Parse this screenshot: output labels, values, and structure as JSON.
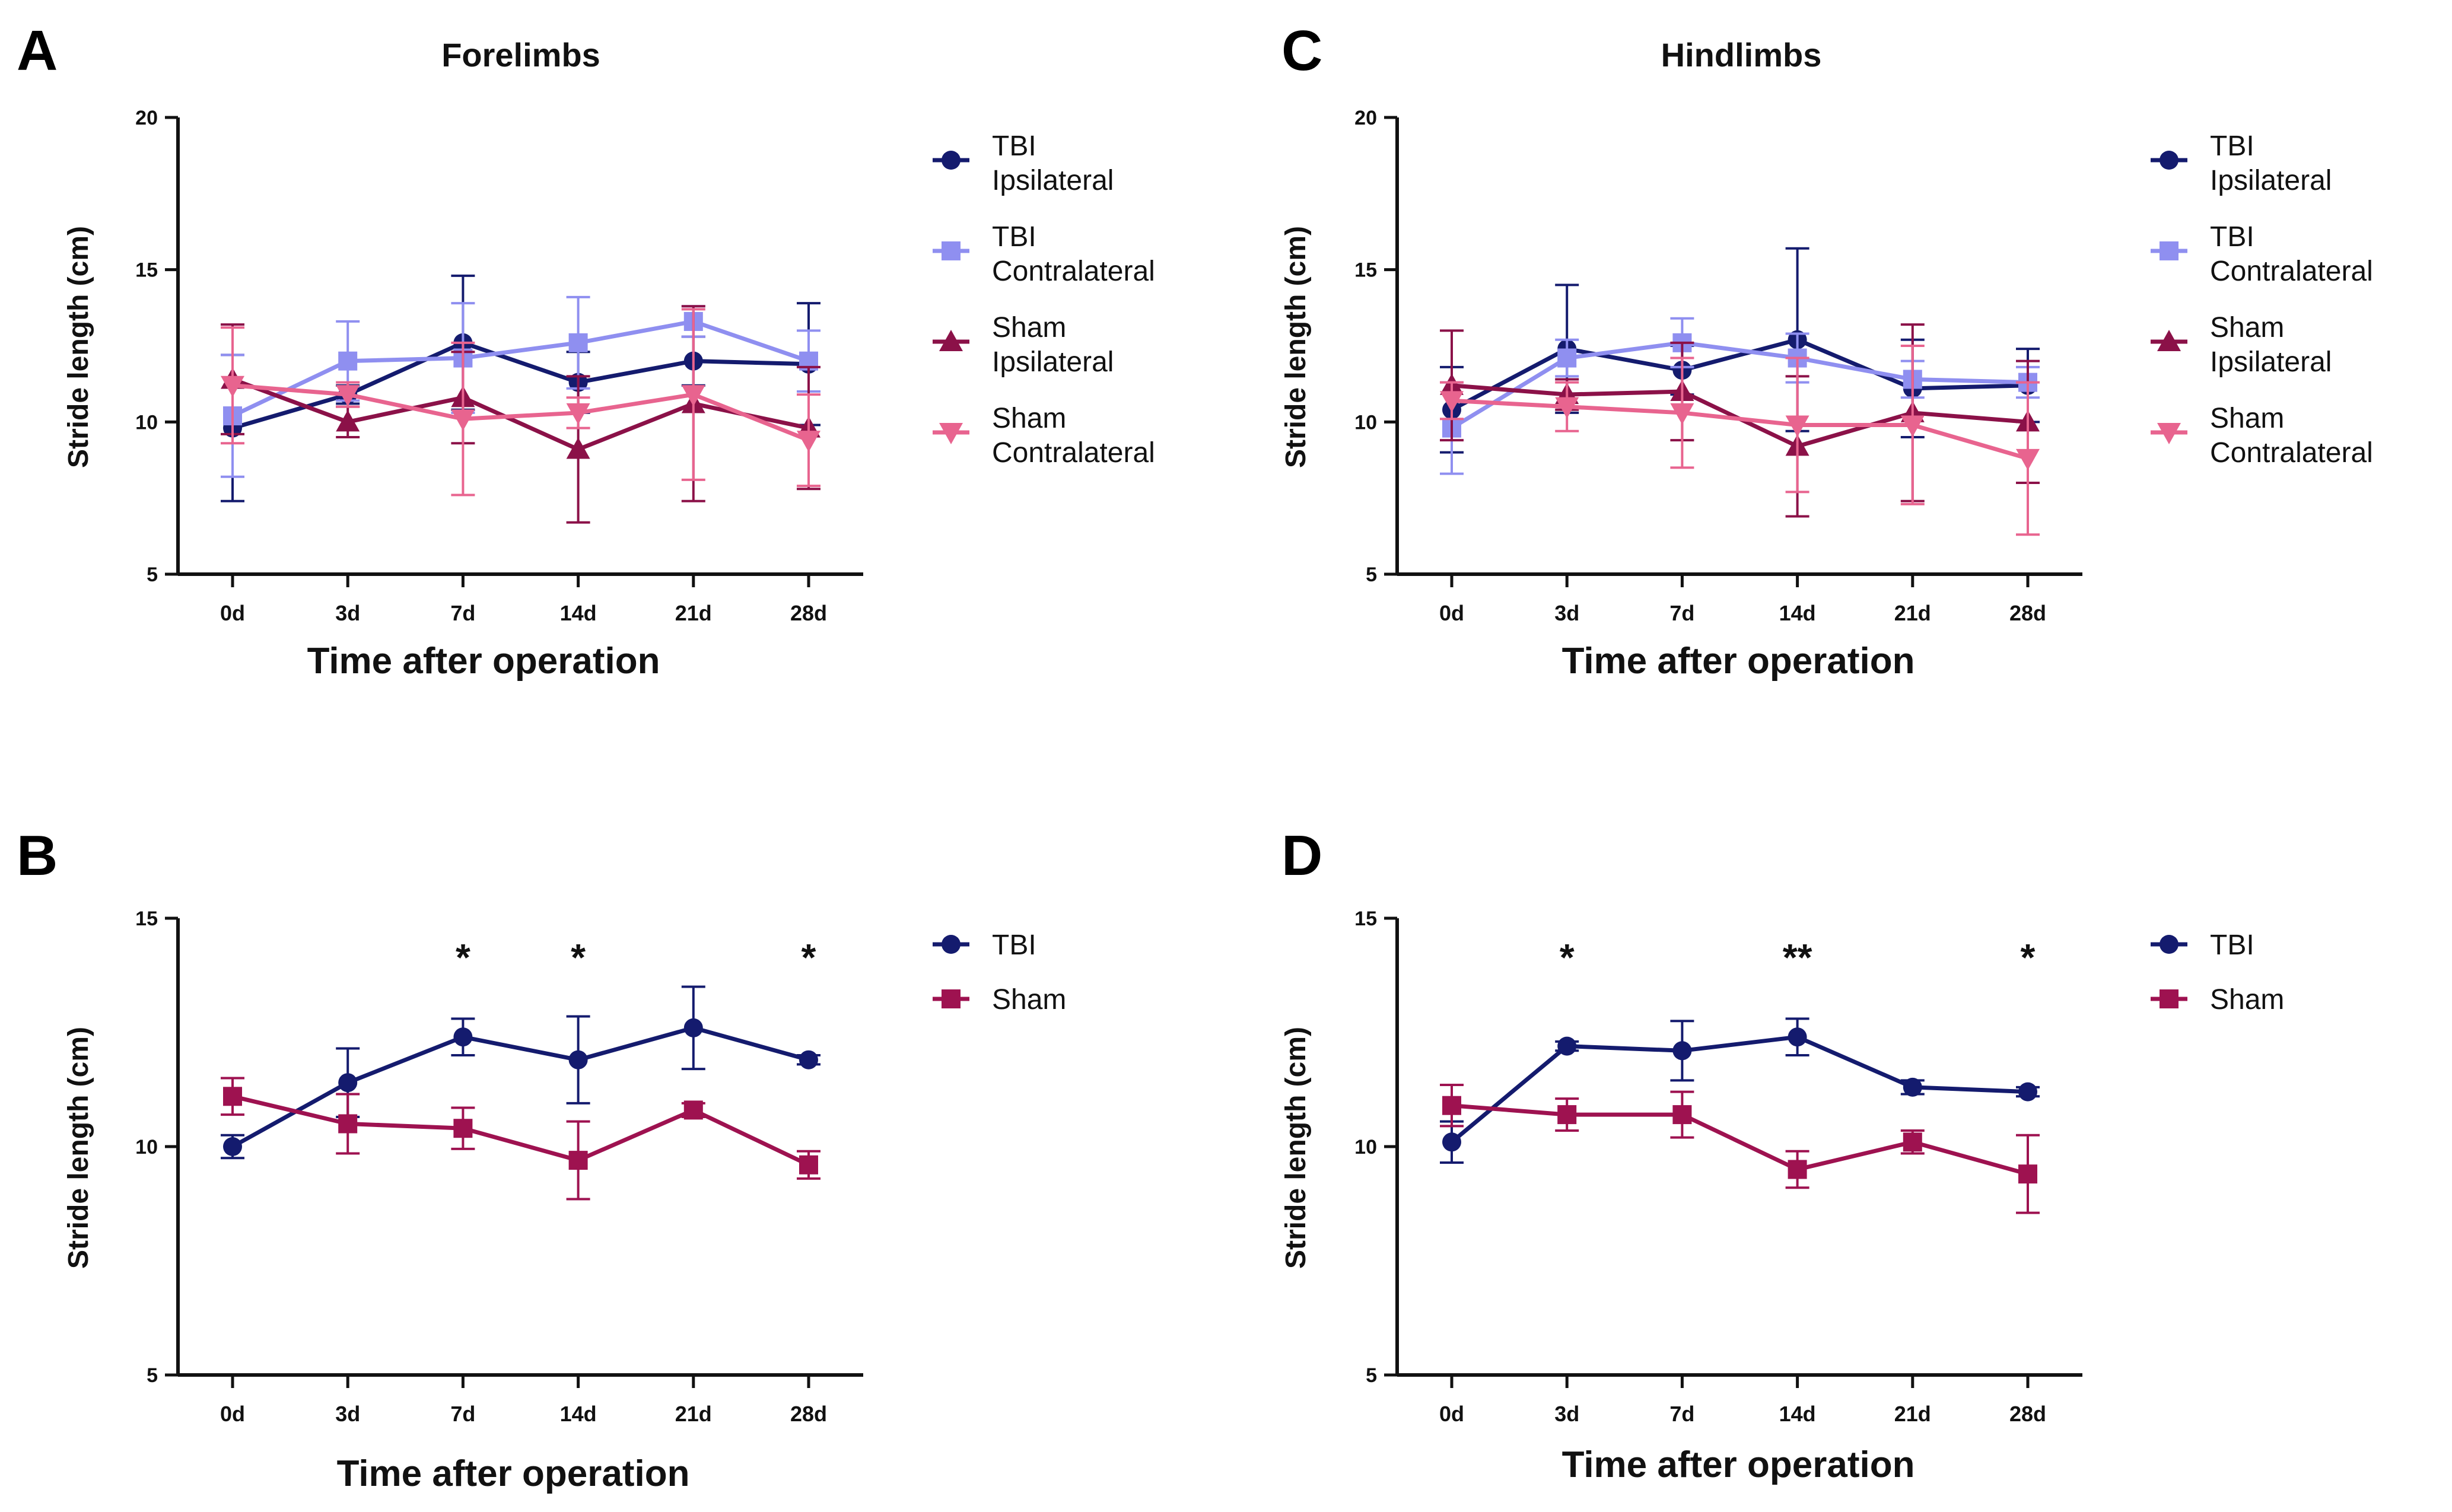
{
  "colors": {
    "tbi_ipsi": "#141b6e",
    "tbi_contra": "#8f8ff0",
    "sham_ipsi": "#8b1148",
    "sham_contra": "#e8648f",
    "tbi": "#141b6e",
    "sham": "#9e1250",
    "axis": "#111111"
  },
  "chart_data": [
    {
      "panel": "A",
      "type": "line",
      "title": "Forelimbs",
      "xlabel": "Time after operation",
      "ylabel": "Stride length (cm)",
      "categories": [
        "0d",
        "3d",
        "7d",
        "14d",
        "21d",
        "28d"
      ],
      "ylim": [
        5,
        20
      ],
      "yticks": [
        5,
        10,
        15,
        20
      ],
      "legend_position": "right",
      "significance": [],
      "series": [
        {
          "name": "TBI Ipsilateral",
          "legend_lines": [
            "TBI",
            "Ipsilateral"
          ],
          "marker": "circle",
          "color_key": "tbi_ipsi",
          "values": [
            9.8,
            10.9,
            12.6,
            11.3,
            12.0,
            11.9
          ],
          "errors": [
            2.4,
            0.3,
            2.2,
            1.0,
            0.8,
            2.0
          ]
        },
        {
          "name": "TBI Contralateral",
          "legend_lines": [
            "TBI",
            "Contralateral"
          ],
          "marker": "square",
          "color_key": "tbi_contra",
          "values": [
            10.2,
            12.0,
            12.1,
            12.6,
            13.3,
            12.0
          ],
          "errors": [
            2.0,
            1.3,
            1.8,
            1.5,
            0.5,
            1.0
          ]
        },
        {
          "name": "Sham Ipsilateral",
          "legend_lines": [
            "Sham",
            "Ipsilateral"
          ],
          "marker": "triangle-up",
          "color_key": "sham_ipsi",
          "values": [
            11.4,
            10.0,
            10.8,
            9.1,
            10.6,
            9.8
          ],
          "errors": [
            1.8,
            0.5,
            1.5,
            2.4,
            3.2,
            2.0
          ]
        },
        {
          "name": "Sham Contralateral",
          "legend_lines": [
            "Sham",
            "Contralateral"
          ],
          "marker": "triangle-down",
          "color_key": "sham_contra",
          "values": [
            11.2,
            10.9,
            10.1,
            10.3,
            10.9,
            9.4
          ],
          "errors": [
            1.9,
            0.4,
            2.5,
            0.5,
            2.8,
            1.5
          ]
        }
      ]
    },
    {
      "panel": "C",
      "type": "line",
      "title": "Hindlimbs",
      "xlabel": "Time after operation",
      "ylabel": "Stride length (cm)",
      "categories": [
        "0d",
        "3d",
        "7d",
        "14d",
        "21d",
        "28d"
      ],
      "ylim": [
        5,
        20
      ],
      "yticks": [
        5,
        10,
        15,
        20
      ],
      "legend_position": "right",
      "significance": [],
      "series": [
        {
          "name": "TBI Ipsilateral",
          "legend_lines": [
            "TBI",
            "Ipsilateral"
          ],
          "marker": "circle",
          "color_key": "tbi_ipsi",
          "values": [
            10.4,
            12.4,
            11.7,
            12.7,
            11.1,
            11.2
          ],
          "errors": [
            1.4,
            2.1,
            0.8,
            3.0,
            1.6,
            1.2
          ]
        },
        {
          "name": "TBI Contralateral",
          "legend_lines": [
            "TBI",
            "Contralateral"
          ],
          "marker": "square",
          "color_key": "tbi_contra",
          "values": [
            9.8,
            12.1,
            12.6,
            12.1,
            11.4,
            11.3
          ],
          "errors": [
            1.5,
            0.6,
            0.8,
            0.8,
            0.6,
            0.5
          ]
        },
        {
          "name": "Sham Ipsilateral",
          "legend_lines": [
            "Sham",
            "Ipsilateral"
          ],
          "marker": "triangle-up",
          "color_key": "sham_ipsi",
          "values": [
            11.2,
            10.9,
            11.0,
            9.2,
            10.3,
            10.0
          ],
          "errors": [
            1.8,
            0.5,
            1.6,
            2.3,
            2.9,
            2.0
          ]
        },
        {
          "name": "Sham Contralateral",
          "legend_lines": [
            "Sham",
            "Contralateral"
          ],
          "marker": "triangle-down",
          "color_key": "sham_contra",
          "values": [
            10.7,
            10.5,
            10.3,
            9.9,
            9.9,
            8.8
          ],
          "errors": [
            0.6,
            0.8,
            1.8,
            2.2,
            2.6,
            2.5
          ]
        }
      ]
    },
    {
      "panel": "B",
      "type": "line",
      "title": "",
      "xlabel": "Time after operation",
      "ylabel": "Stride length (cm)",
      "categories": [
        "0d",
        "3d",
        "7d",
        "14d",
        "21d",
        "28d"
      ],
      "ylim": [
        5,
        15
      ],
      "yticks": [
        5,
        10,
        15
      ],
      "legend_position": "right",
      "significance": [
        {
          "category": "7d",
          "label": "*"
        },
        {
          "category": "14d",
          "label": "*"
        },
        {
          "category": "28d",
          "label": "*"
        }
      ],
      "series": [
        {
          "name": "TBI",
          "legend_lines": [
            "TBI"
          ],
          "marker": "circle",
          "color_key": "tbi",
          "values": [
            10.0,
            11.4,
            12.4,
            11.9,
            12.6,
            11.9
          ],
          "errors": [
            0.25,
            0.75,
            0.4,
            0.95,
            0.9,
            0.1
          ]
        },
        {
          "name": "Sham",
          "legend_lines": [
            "Sham"
          ],
          "marker": "square",
          "color_key": "sham",
          "values": [
            11.1,
            10.5,
            10.4,
            9.7,
            10.8,
            9.6
          ],
          "errors": [
            0.4,
            0.65,
            0.45,
            0.85,
            0.15,
            0.3
          ]
        }
      ]
    },
    {
      "panel": "D",
      "type": "line",
      "title": "",
      "xlabel": "Time after operation",
      "ylabel": "Stride length (cm)",
      "categories": [
        "0d",
        "3d",
        "7d",
        "14d",
        "21d",
        "28d"
      ],
      "ylim": [
        5,
        15
      ],
      "yticks": [
        5,
        10,
        15
      ],
      "legend_position": "right",
      "significance": [
        {
          "category": "3d",
          "label": "*"
        },
        {
          "category": "14d",
          "label": "**"
        },
        {
          "category": "28d",
          "label": "*"
        }
      ],
      "series": [
        {
          "name": "TBI",
          "legend_lines": [
            "TBI"
          ],
          "marker": "circle",
          "color_key": "tbi",
          "values": [
            10.1,
            12.2,
            12.1,
            12.4,
            11.3,
            11.2
          ],
          "errors": [
            0.45,
            0.1,
            0.65,
            0.4,
            0.15,
            0.1
          ]
        },
        {
          "name": "Sham",
          "legend_lines": [
            "Sham"
          ],
          "marker": "square",
          "color_key": "sham",
          "values": [
            10.9,
            10.7,
            10.7,
            9.5,
            10.1,
            9.4
          ],
          "errors": [
            0.45,
            0.35,
            0.5,
            0.4,
            0.25,
            0.85
          ]
        }
      ]
    }
  ]
}
